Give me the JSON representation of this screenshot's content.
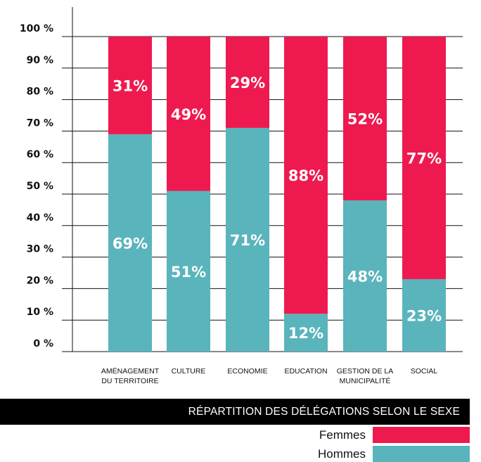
{
  "chart_data": {
    "type": "bar",
    "stacked": true,
    "title": "RÉPARTITION DES DÉLÉGATIONS SELON LE SEXE",
    "categories": [
      [
        "AMÉNAGEMENT",
        "DU TERRITOIRE"
      ],
      [
        "CULTURE"
      ],
      [
        "ECONOMIE"
      ],
      [
        "EDUCATION"
      ],
      [
        "GESTION DE LA",
        "MUNICIPALITÉ"
      ],
      [
        "SOCIAL"
      ]
    ],
    "series": [
      {
        "name": "Hommes",
        "color": "#5ab4bc",
        "values": [
          69,
          51,
          71,
          12,
          48,
          23
        ]
      },
      {
        "name": "Femmes",
        "color": "#ee1a4f",
        "values": [
          31,
          49,
          29,
          88,
          52,
          77
        ]
      }
    ],
    "data_label_suffix": "%",
    "ylim": [
      0,
      100
    ],
    "yticks": [
      "0 %",
      "10 %",
      "20 %",
      "30 %",
      "40 %",
      "50 %",
      "60 %",
      "70 %",
      "80 %",
      "90 %",
      "100 %"
    ],
    "grid": true,
    "legend": [
      "Femmes",
      "Hommes"
    ],
    "legend_position": "bottom-right"
  }
}
